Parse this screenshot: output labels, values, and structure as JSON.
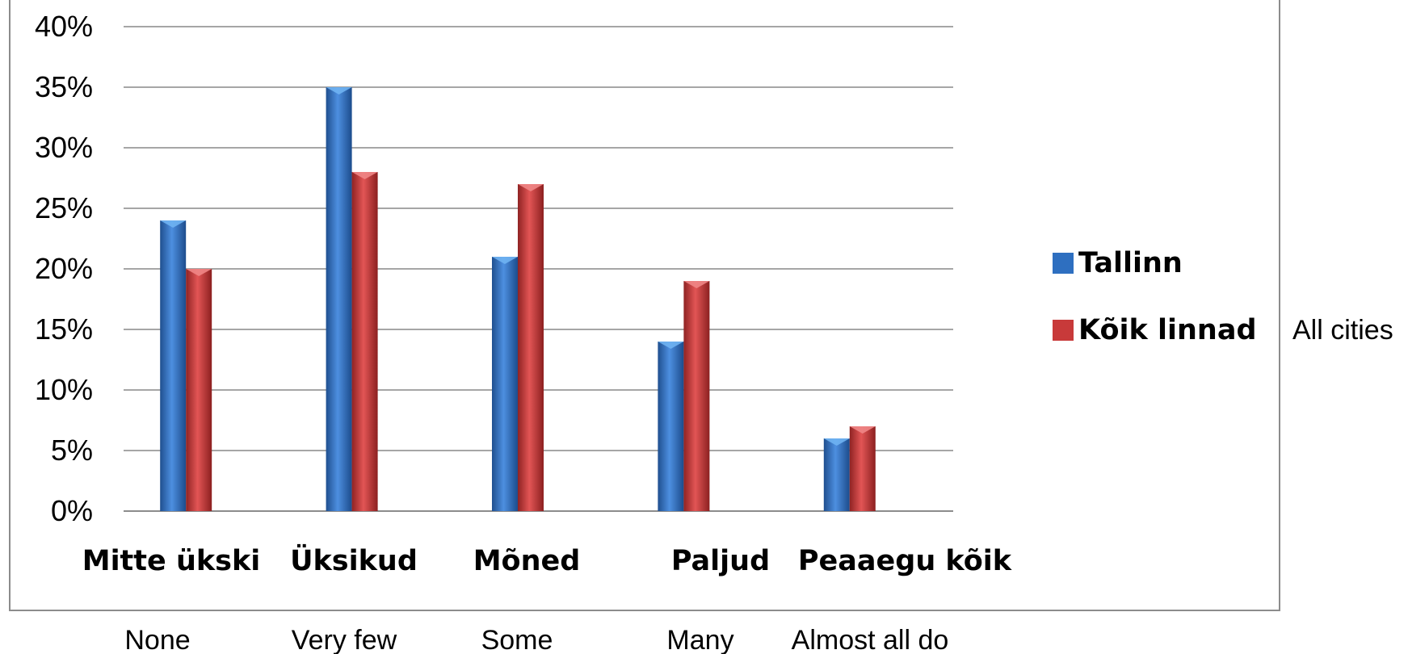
{
  "chart_data": {
    "type": "bar",
    "categories": [
      "Mitte ükski",
      "Üksikud",
      "Mõned",
      "Paljud",
      "Peaaegu kõik"
    ],
    "category_translations": [
      "None",
      "Very few",
      "Some",
      "Many",
      "Almost all do"
    ],
    "series": [
      {
        "name": "Tallinn",
        "values": [
          24,
          35,
          21,
          14,
          6
        ],
        "color": "#2e6fc0"
      },
      {
        "name": "Kõik linnad",
        "name_translation": "All cities",
        "values": [
          20,
          28,
          27,
          19,
          7
        ],
        "color": "#c83a3a"
      }
    ],
    "yticks": [
      "0%",
      "5%",
      "10%",
      "15%",
      "20%",
      "25%",
      "30%",
      "35%",
      "40%"
    ],
    "ylim": [
      0,
      40
    ],
    "grid": true,
    "legend_position": "right",
    "title": "",
    "xlabel": "",
    "ylabel": ""
  }
}
